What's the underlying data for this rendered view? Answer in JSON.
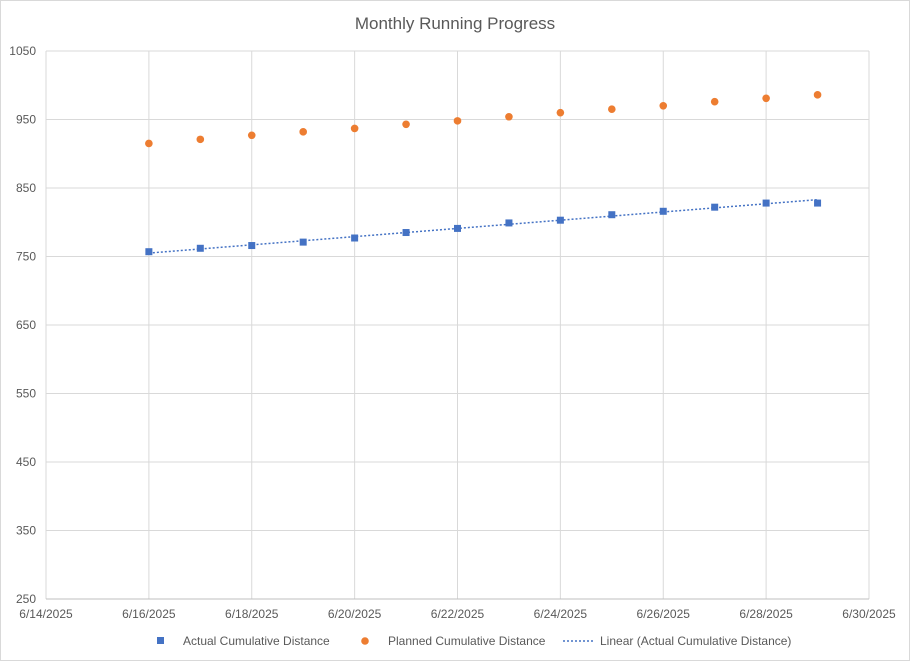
{
  "chart_data": {
    "type": "scatter",
    "title": "Monthly Running Progress",
    "xlabel": "",
    "ylabel": "",
    "x_ticks": [
      "6/14/2025",
      "6/16/2025",
      "6/18/2025",
      "6/20/2025",
      "6/22/2025",
      "6/24/2025",
      "6/26/2025",
      "6/28/2025",
      "6/30/2025"
    ],
    "y_ticks": [
      250,
      350,
      450,
      550,
      650,
      750,
      850,
      950,
      1050
    ],
    "xlim": [
      "6/14/2025",
      "6/30/2025"
    ],
    "ylim": [
      250,
      1050
    ],
    "grid": true,
    "legend_position": "bottom",
    "series": [
      {
        "name": "Actual Cumulative Distance",
        "marker": "square",
        "color": "#4472C4",
        "x": [
          "6/16/2025",
          "6/17/2025",
          "6/18/2025",
          "6/19/2025",
          "6/20/2025",
          "6/21/2025",
          "6/22/2025",
          "6/23/2025",
          "6/24/2025",
          "6/25/2025",
          "6/26/2025",
          "6/27/2025",
          "6/28/2025",
          "6/29/2025"
        ],
        "y": [
          757,
          762,
          766,
          771,
          777,
          785,
          791,
          799,
          803,
          811,
          816,
          822,
          828,
          828
        ]
      },
      {
        "name": "Planned Cumulative Distance",
        "marker": "circle",
        "color": "#ED7D31",
        "x": [
          "6/16/2025",
          "6/17/2025",
          "6/18/2025",
          "6/19/2025",
          "6/20/2025",
          "6/21/2025",
          "6/22/2025",
          "6/23/2025",
          "6/24/2025",
          "6/25/2025",
          "6/26/2025",
          "6/27/2025",
          "6/28/2025",
          "6/29/2025"
        ],
        "y": [
          915,
          921,
          927,
          932,
          937,
          943,
          948,
          954,
          960,
          965,
          970,
          976,
          981,
          986
        ]
      }
    ],
    "trendline": {
      "name": "Linear (Actual Cumulative Distance)",
      "type": "linear",
      "style": "dotted",
      "color": "#4472C4",
      "x_start": "6/16/2025",
      "x_end": "6/29/2025",
      "y_start": 755,
      "y_end": 833
    }
  }
}
